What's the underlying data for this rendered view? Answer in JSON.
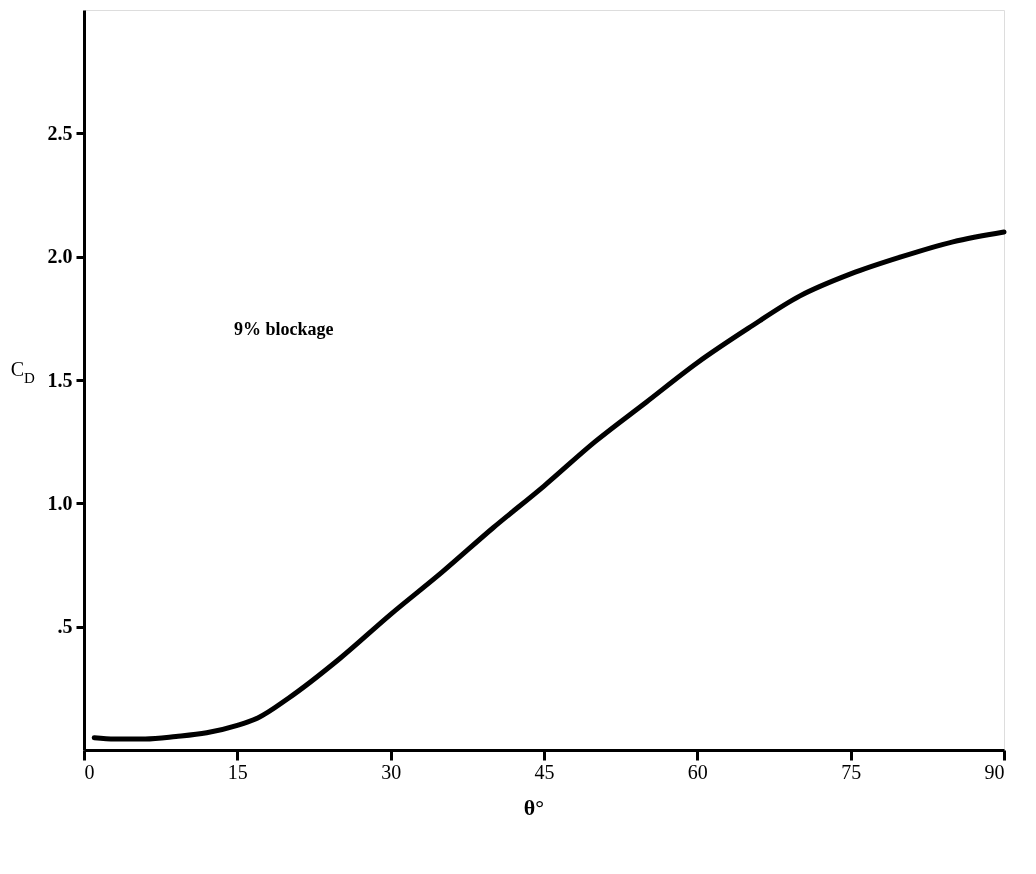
{
  "chart_data": {
    "type": "line",
    "xlabel": "θ°",
    "ylabel": "C$_{D}$",
    "x": [
      1,
      3,
      6,
      9,
      12,
      15,
      17,
      20,
      25,
      30,
      35,
      40,
      45,
      50,
      55,
      60,
      65,
      70,
      75,
      80,
      85,
      90
    ],
    "series": [
      {
        "color": "#000000",
        "values": [
          0.05,
          0.045,
          0.045,
          0.055,
          0.07,
          0.1,
          0.13,
          0.21,
          0.37,
          0.55,
          0.72,
          0.9,
          1.07,
          1.25,
          1.41,
          1.57,
          1.71,
          1.84,
          1.93,
          2.0,
          2.06,
          2.1
        ]
      }
    ],
    "xlim": [
      0,
      90
    ],
    "xticks": [
      0,
      15,
      30,
      45,
      60,
      75,
      90
    ],
    "ylim": [
      0,
      3.0
    ],
    "yticks": [
      {
        "value": 0.5,
        "label": ".5"
      },
      {
        "value": 1,
        "label": "1.0"
      },
      {
        "value": 1.5,
        "label": "1.5"
      },
      {
        "value": 2,
        "label": "2.0"
      },
      {
        "value": 2.5,
        "label": "2.5"
      }
    ],
    "annotations": [
      "9% blockage"
    ],
    "grid": false,
    "marker": "none",
    "line_style": "solid"
  }
}
